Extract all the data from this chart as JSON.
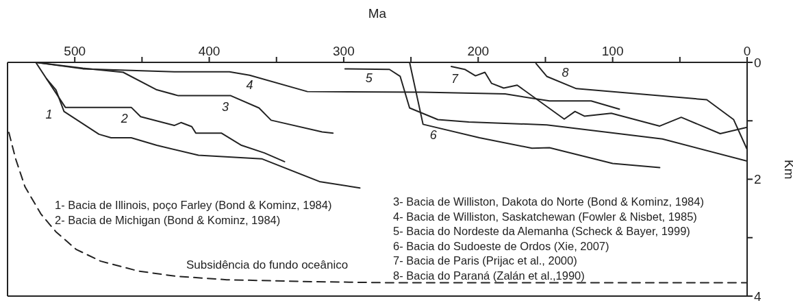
{
  "chart_data": {
    "type": "line",
    "xlabel": "Ma",
    "ylabel": "Km",
    "xlim": [
      550,
      0
    ],
    "ylim": [
      4,
      0
    ],
    "xticks": [
      500,
      {
        "value": 450,
        "label": null
      },
      400,
      {
        "value": 350,
        "label": null
      },
      300,
      {
        "value": 250,
        "label": null
      },
      200,
      {
        "value": 150,
        "label": null
      },
      100,
      {
        "value": 50,
        "label": null
      },
      0
    ],
    "yticks": [
      0,
      {
        "value": 1,
        "label": null
      },
      2,
      {
        "value": 3,
        "label": null
      },
      4
    ],
    "marker": "none",
    "series": [
      {
        "name": "1",
        "color": "#222222",
        "x": [
          521,
          514,
          508,
          482,
          473,
          458,
          439,
          408,
          361,
          318,
          288
        ],
        "values": [
          0.28,
          0.47,
          0.84,
          1.23,
          1.29,
          1.29,
          1.42,
          1.59,
          1.65,
          2.04,
          2.15
        ]
      },
      {
        "name": "2",
        "color": "#222222",
        "x": [
          529,
          507,
          458,
          451,
          426,
          421,
          413,
          410,
          391,
          376,
          359,
          344
        ],
        "values": [
          0,
          0.77,
          0.77,
          0.93,
          1.08,
          1.03,
          1.1,
          1.21,
          1.21,
          1.42,
          1.55,
          1.7
        ]
      },
      {
        "name": "3",
        "color": "#222222",
        "x": [
          529,
          494,
          464,
          439,
          423,
          384,
          363,
          354,
          316,
          308
        ],
        "values": [
          0,
          0.1,
          0.17,
          0.47,
          0.57,
          0.57,
          0.78,
          0.99,
          1.19,
          1.21
        ]
      },
      {
        "name": "4",
        "color": "#222222",
        "x": [
          529,
          494,
          426,
          385,
          370,
          327,
          241,
          180,
          147,
          116,
          95
        ],
        "values": [
          0,
          0.11,
          0.16,
          0.16,
          0.22,
          0.5,
          0.51,
          0.54,
          0.66,
          0.66,
          0.8
        ]
      },
      {
        "name": "5",
        "color": "#222222",
        "x": [
          299,
          266,
          258,
          251,
          230,
          207,
          149,
          63,
          0
        ],
        "values": [
          0.11,
          0.12,
          0.24,
          0.78,
          0.98,
          1.02,
          1.07,
          1.31,
          1.69
        ]
      },
      {
        "name": "6",
        "color": "#222222",
        "x": [
          251,
          241,
          199,
          160,
          147,
          100,
          65
        ],
        "values": [
          0,
          1.06,
          1.29,
          1.47,
          1.46,
          1.73,
          1.8
        ]
      },
      {
        "name": "7",
        "color": "#222222",
        "x": [
          220,
          210,
          202,
          195,
          190,
          181,
          171,
          136,
          128,
          121,
          101,
          65,
          49,
          20,
          0
        ],
        "values": [
          0.07,
          0.12,
          0.23,
          0.17,
          0.36,
          0.44,
          0.39,
          0.97,
          0.84,
          0.92,
          0.87,
          1.09,
          0.94,
          1.22,
          1.11
        ]
      },
      {
        "name": "8",
        "color": "#222222",
        "x": [
          157,
          149,
          127,
          30,
          10,
          0
        ],
        "values": [
          0.02,
          0.24,
          0.45,
          0.64,
          0.98,
          1.49
        ]
      },
      {
        "name": "Subsidência do fundo oceânico",
        "color": "#222222",
        "line_style": "dashed",
        "x": [
          549,
          544,
          537,
          525,
          514,
          499,
          481,
          453,
          425,
          387,
          331,
          272,
          0
        ],
        "values": [
          1.2,
          1.65,
          2.13,
          2.6,
          2.9,
          3.2,
          3.4,
          3.57,
          3.66,
          3.72,
          3.75,
          3.77,
          3.77
        ]
      }
    ],
    "annotations": [
      "1- Bacia de Illinois, poço Farley (Bond & Kominz, 1984)",
      "2- Bacia de Michigan (Bond & Kominz, 1984)",
      "3- Bacia de Williston, Dakota do Norte (Bond & Kominz, 1984)",
      "4- Bacia de Williston, Saskatchewan (Fowler & Nisbet, 1985)",
      "5- Bacia do Nordeste da Alemanha (Scheck & Bayer, 1999)",
      "6- Bacia do Sudoeste de Ordos (Xie, 2007)",
      "7- Bacia de Paris (Prijac et al., 2000)",
      "8- Bacia do Paraná (Zalán et al.,1990)"
    ]
  }
}
